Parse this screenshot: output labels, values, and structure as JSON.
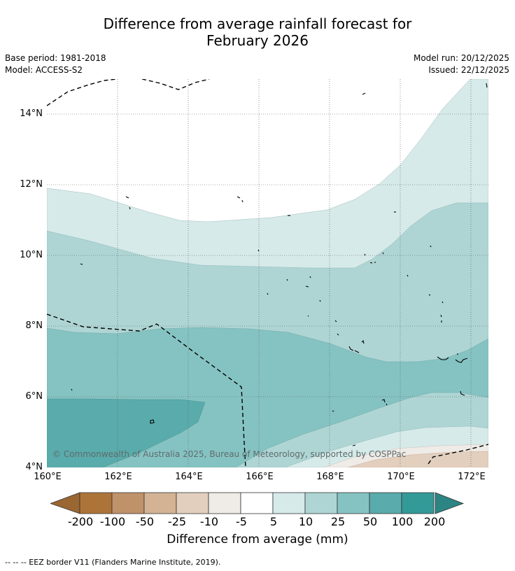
{
  "title": {
    "line1": "Difference from average rainfall forecast for",
    "line2": "February 2026"
  },
  "meta": {
    "base_period": "Base period: 1981-2018",
    "model": "Model: ACCESS-S2",
    "model_run": "Model run: 20/12/2025",
    "issued": "Issued: 22/12/2025"
  },
  "axes": {
    "lat_labels": [
      "14°N",
      "12°N",
      "10°N",
      "8°N",
      "6°N",
      "4°N"
    ],
    "lon_labels": [
      "160°E",
      "162°E",
      "164°E",
      "166°E",
      "168°E",
      "170°E",
      "172°E"
    ]
  },
  "map": {
    "lon_range": [
      160,
      172.5
    ],
    "lat_range": [
      4,
      15
    ],
    "copyright": "© Commonwealth of Australia 2025, Bureau of Meteorology, supported by COSPPac"
  },
  "legend": {
    "labels": [
      "-200",
      "-100",
      "-50",
      "-25",
      "-10",
      "-5",
      "5",
      "10",
      "25",
      "50",
      "100",
      "200"
    ],
    "colors": [
      "#ad7439",
      "#c0926a",
      "#d3b394",
      "#e3cfbe",
      "#efebe7",
      "#ffffff",
      "#d6eae9",
      "#aed5d4",
      "#85c3c2",
      "#5aabab",
      "#339a98"
    ],
    "low_extend_color": "#9a6632",
    "high_extend_color": "#2c8583",
    "title": "Difference from average (mm)"
  },
  "footnote": "--  --  -- EEZ border V11 (Flanders Marine Institute, 2019)."
}
